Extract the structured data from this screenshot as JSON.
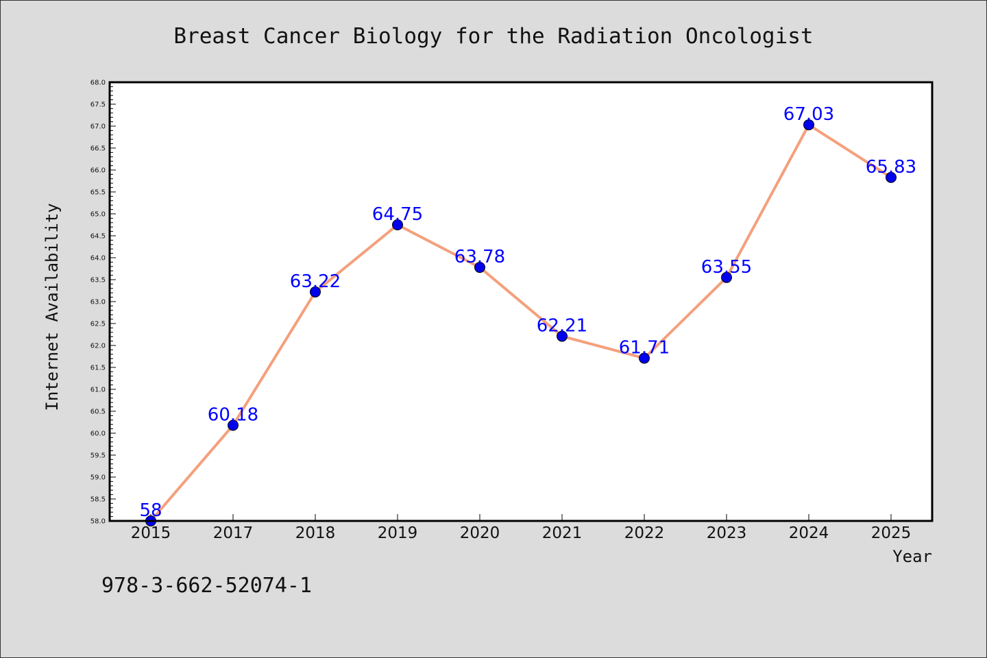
{
  "chart_data": {
    "type": "line",
    "title": "Breast Cancer Biology for the Radiation Oncologist",
    "xlabel": "Year",
    "ylabel": "Internet Availability",
    "categories": [
      "2015",
      "2017",
      "2018",
      "2019",
      "2020",
      "2021",
      "2022",
      "2023",
      "2024",
      "2025"
    ],
    "values": [
      58,
      60.18,
      63.22,
      64.75,
      63.78,
      62.21,
      61.71,
      63.55,
      67.03,
      65.83
    ],
    "data_labels": [
      "58",
      "60.18",
      "63.22",
      "64.75",
      "63.78",
      "62.21",
      "61.71",
      "63.55",
      "67.03",
      "65.83"
    ],
    "ylim": [
      58.0,
      68.0
    ],
    "yticks": [
      "58.0",
      "58.5",
      "59.0",
      "59.5",
      "60.0",
      "60.5",
      "61.0",
      "61.5",
      "62.0",
      "62.5",
      "63.0",
      "63.5",
      "64.0",
      "64.5",
      "65.0",
      "65.5",
      "66.0",
      "66.5",
      "67.0",
      "67.5",
      "68.0"
    ],
    "grid": false,
    "line_color": "#f4a07c",
    "marker_color": "#0000ee",
    "label_color": "#0000ff",
    "plot_background": "#ffffff",
    "figure_background": "#dcdcdc"
  },
  "footer": {
    "isbn": "978-3-662-52074-1"
  }
}
